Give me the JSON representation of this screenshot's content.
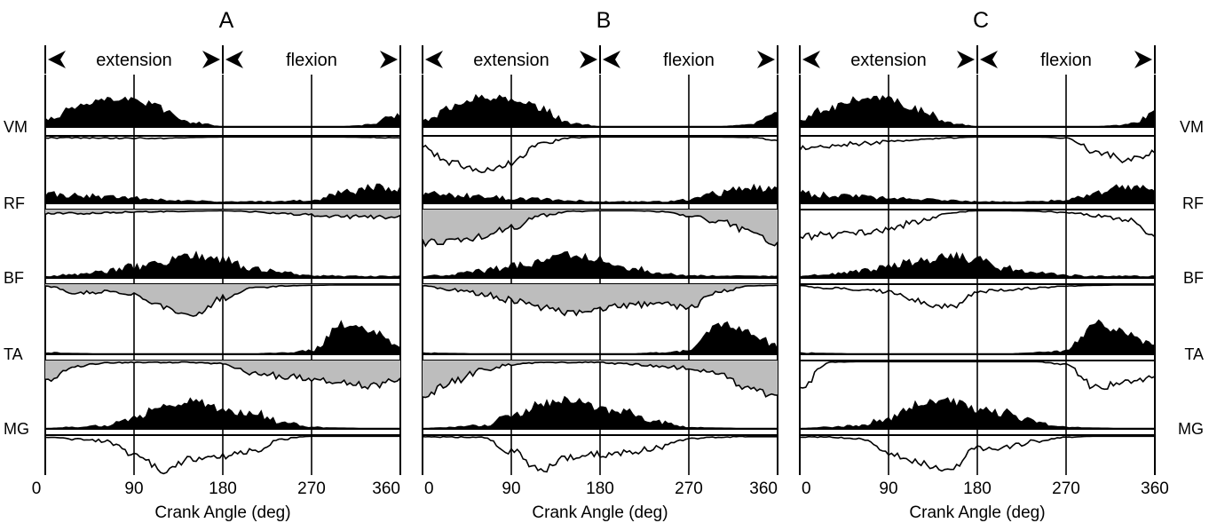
{
  "chart_data": {
    "type": "area",
    "x_range": [
      0,
      360
    ],
    "x_ticks": [
      "0",
      "90",
      "180",
      "270",
      "360"
    ],
    "xlabel": "Crank Angle (deg)",
    "phase_labels": [
      "extension",
      "flexion"
    ],
    "phase_boundaries_deg": [
      0,
      180,
      360
    ],
    "muscles": [
      "VM",
      "RF",
      "BF",
      "TA",
      "MG"
    ],
    "muscle_label_side": [
      "left",
      "none",
      "right"
    ],
    "grid_lines_deg": [
      90,
      180,
      270
    ],
    "sample_x_deg": [
      0,
      30,
      60,
      90,
      120,
      150,
      180,
      210,
      240,
      270,
      300,
      330,
      360
    ],
    "emg_color": "#000000",
    "difference_fill_color": "#bdbdbd",
    "panels": [
      {
        "label": "A",
        "rows": [
          {
            "muscle": "VM",
            "emg": [
              0.2,
              0.6,
              0.9,
              0.85,
              0.55,
              0.12,
              0.02,
              0.02,
              0.02,
              0.02,
              0.02,
              0.06,
              0.4
            ],
            "difference": [
              0.05,
              0.05,
              0.06,
              0.06,
              0.06,
              0.04,
              0.03,
              0.03,
              0.03,
              0.03,
              0.03,
              0.04,
              0.05
            ],
            "diff_shaded": false
          },
          {
            "muscle": "RF",
            "emg": [
              0.3,
              0.25,
              0.2,
              0.15,
              0.12,
              0.08,
              0.05,
              0.05,
              0.05,
              0.1,
              0.3,
              0.5,
              0.45
            ],
            "difference": [
              0.1,
              0.1,
              0.08,
              0.06,
              0.05,
              0.04,
              0.03,
              0.06,
              0.1,
              0.14,
              0.18,
              0.2,
              0.18
            ],
            "diff_shaded": true
          },
          {
            "muscle": "BF",
            "emg": [
              0.05,
              0.1,
              0.2,
              0.35,
              0.5,
              0.7,
              0.55,
              0.3,
              0.15,
              0.08,
              0.05,
              0.05,
              0.05
            ],
            "difference": [
              0.05,
              0.2,
              0.2,
              0.3,
              0.55,
              0.85,
              0.35,
              0.1,
              0.05,
              0.03,
              0.02,
              0.02,
              0.02
            ],
            "diff_shaded": true
          },
          {
            "muscle": "TA",
            "emg": [
              0.05,
              0.03,
              0.02,
              0.02,
              0.02,
              0.02,
              0.02,
              0.02,
              0.05,
              0.1,
              0.95,
              0.7,
              0.25
            ],
            "difference": [
              0.55,
              0.15,
              0.06,
              0.05,
              0.05,
              0.05,
              0.08,
              0.3,
              0.4,
              0.45,
              0.55,
              0.65,
              0.45
            ],
            "diff_shaded": true
          },
          {
            "muscle": "MG",
            "emg": [
              0.02,
              0.05,
              0.1,
              0.35,
              0.75,
              0.9,
              0.6,
              0.5,
              0.2,
              0.05,
              0.03,
              0.02,
              0.02
            ],
            "difference": [
              0.05,
              0.1,
              0.15,
              0.5,
              0.9,
              0.6,
              0.55,
              0.4,
              0.1,
              0.03,
              0.03,
              0.03,
              0.03
            ],
            "diff_shaded": false
          }
        ]
      },
      {
        "label": "B",
        "rows": [
          {
            "muscle": "VM",
            "emg": [
              0.2,
              0.6,
              0.9,
              0.85,
              0.55,
              0.12,
              0.02,
              0.02,
              0.02,
              0.02,
              0.02,
              0.06,
              0.4
            ],
            "difference": [
              0.3,
              0.7,
              0.9,
              0.7,
              0.2,
              0.05,
              0.03,
              0.03,
              0.03,
              0.03,
              0.03,
              0.04,
              0.1
            ],
            "diff_shaded": false
          },
          {
            "muscle": "RF",
            "emg": [
              0.3,
              0.25,
              0.2,
              0.15,
              0.12,
              0.08,
              0.05,
              0.05,
              0.05,
              0.1,
              0.3,
              0.5,
              0.45
            ],
            "difference": [
              0.85,
              0.8,
              0.7,
              0.45,
              0.15,
              0.05,
              0.03,
              0.03,
              0.05,
              0.15,
              0.3,
              0.55,
              0.85
            ],
            "diff_shaded": true
          },
          {
            "muscle": "BF",
            "emg": [
              0.05,
              0.1,
              0.2,
              0.35,
              0.5,
              0.7,
              0.55,
              0.3,
              0.15,
              0.08,
              0.05,
              0.05,
              0.05
            ],
            "difference": [
              0.05,
              0.15,
              0.25,
              0.4,
              0.6,
              0.75,
              0.6,
              0.55,
              0.5,
              0.6,
              0.2,
              0.05,
              0.03
            ],
            "diff_shaded": true
          },
          {
            "muscle": "TA",
            "emg": [
              0.05,
              0.03,
              0.02,
              0.02,
              0.02,
              0.02,
              0.02,
              0.02,
              0.05,
              0.1,
              0.95,
              0.7,
              0.25
            ],
            "difference": [
              0.9,
              0.55,
              0.25,
              0.1,
              0.05,
              0.05,
              0.05,
              0.1,
              0.15,
              0.2,
              0.35,
              0.7,
              0.95
            ],
            "diff_shaded": true
          },
          {
            "muscle": "MG",
            "emg": [
              0.02,
              0.05,
              0.1,
              0.35,
              0.75,
              0.9,
              0.6,
              0.5,
              0.2,
              0.05,
              0.03,
              0.02,
              0.02
            ],
            "difference": [
              0.05,
              0.05,
              0.05,
              0.4,
              0.9,
              0.55,
              0.5,
              0.45,
              0.3,
              0.1,
              0.05,
              0.04,
              0.04
            ],
            "diff_shaded": false
          }
        ]
      },
      {
        "label": "C",
        "rows": [
          {
            "muscle": "VM",
            "emg": [
              0.2,
              0.6,
              0.9,
              0.85,
              0.55,
              0.12,
              0.02,
              0.02,
              0.02,
              0.02,
              0.02,
              0.06,
              0.4
            ],
            "difference": [
              0.3,
              0.25,
              0.2,
              0.15,
              0.1,
              0.05,
              0.03,
              0.03,
              0.03,
              0.05,
              0.4,
              0.6,
              0.45
            ],
            "diff_shaded": false
          },
          {
            "muscle": "RF",
            "emg": [
              0.3,
              0.25,
              0.2,
              0.15,
              0.12,
              0.08,
              0.05,
              0.05,
              0.05,
              0.1,
              0.3,
              0.5,
              0.45
            ],
            "difference": [
              0.7,
              0.65,
              0.6,
              0.5,
              0.3,
              0.1,
              0.03,
              0.03,
              0.04,
              0.08,
              0.15,
              0.25,
              0.7
            ],
            "diff_shaded": false
          },
          {
            "muscle": "BF",
            "emg": [
              0.05,
              0.1,
              0.2,
              0.35,
              0.5,
              0.7,
              0.55,
              0.3,
              0.15,
              0.08,
              0.05,
              0.05,
              0.05
            ],
            "difference": [
              0.05,
              0.1,
              0.15,
              0.2,
              0.45,
              0.6,
              0.2,
              0.15,
              0.1,
              0.05,
              0.03,
              0.02,
              0.02
            ],
            "diff_shaded": false
          },
          {
            "muscle": "TA",
            "emg": [
              0.05,
              0.03,
              0.02,
              0.02,
              0.02,
              0.02,
              0.02,
              0.02,
              0.05,
              0.1,
              0.95,
              0.7,
              0.25
            ],
            "difference": [
              0.7,
              0.05,
              0.03,
              0.03,
              0.03,
              0.03,
              0.03,
              0.03,
              0.03,
              0.1,
              0.7,
              0.55,
              0.4
            ],
            "diff_shaded": false
          },
          {
            "muscle": "MG",
            "emg": [
              0.02,
              0.05,
              0.1,
              0.35,
              0.75,
              0.9,
              0.6,
              0.5,
              0.2,
              0.05,
              0.03,
              0.02,
              0.02
            ],
            "difference": [
              0.05,
              0.05,
              0.1,
              0.45,
              0.7,
              0.95,
              0.35,
              0.3,
              0.15,
              0.05,
              0.03,
              0.03,
              0.03
            ],
            "diff_shaded": false
          }
        ]
      }
    ]
  }
}
